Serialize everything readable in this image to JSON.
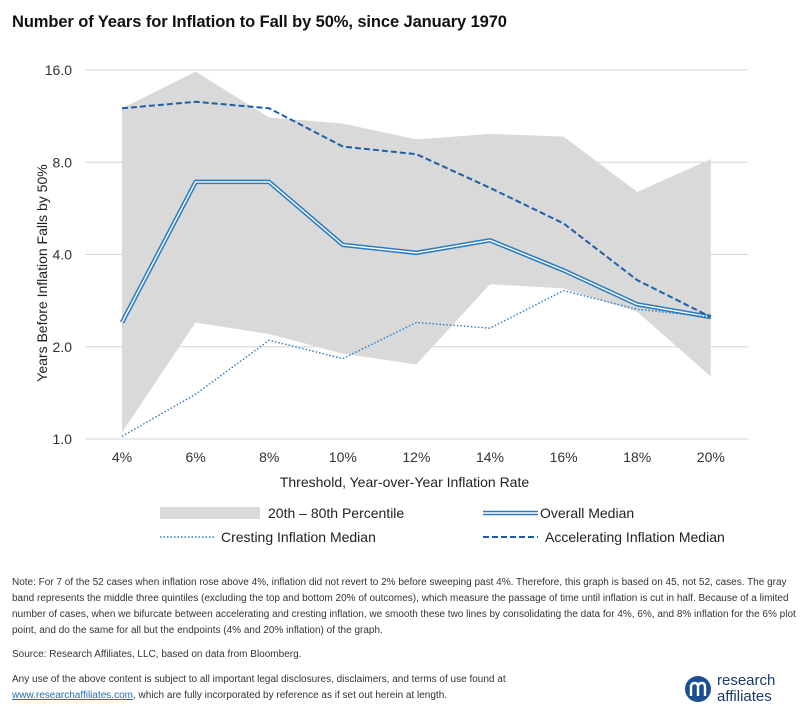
{
  "title": "Number of Years for Inflation to Fall by 50%, since January 1970",
  "chart_data": {
    "type": "line",
    "title": "Number of Years for Inflation to Fall by 50%, since January 1970",
    "xlabel": "Threshold,  Year-over-Year  Inflation  Rate",
    "ylabel": "Years Before Inflation Falls by 50%",
    "categories": [
      "4%",
      "6%",
      "8%",
      "10%",
      "12%",
      "14%",
      "16%",
      "18%",
      "20%"
    ],
    "y_scale": "log2",
    "ylim": [
      1.0,
      16.0
    ],
    "y_ticks": [
      "1.0",
      "2.0",
      "4.0",
      "8.0",
      "16.0"
    ],
    "y_tick_values": [
      1,
      2,
      4,
      8,
      16
    ],
    "grid": "horizontal",
    "band": {
      "name": "20th – 80th Percentile",
      "lower": [
        1.05,
        2.4,
        2.2,
        1.9,
        1.75,
        3.2,
        3.1,
        2.6,
        1.6
      ],
      "upper": [
        12.0,
        15.8,
        11.2,
        10.7,
        9.5,
        9.9,
        9.7,
        6.4,
        8.2
      ],
      "color": "#d9d9d9"
    },
    "series": [
      {
        "name": "Overall Median",
        "style": "double-solid",
        "color": "#2a7bc0",
        "values": [
          2.4,
          6.9,
          6.9,
          4.3,
          4.05,
          4.45,
          3.55,
          2.75,
          2.5
        ]
      },
      {
        "name": "Cresting Inflation Median",
        "style": "dotted",
        "color": "#2a7bc0",
        "values": [
          1.02,
          1.4,
          2.1,
          1.83,
          2.4,
          2.3,
          3.05,
          2.65,
          2.5
        ]
      },
      {
        "name": "Accelerating Inflation Median",
        "style": "dashed",
        "color": "#1f5fa6",
        "values": [
          12.0,
          12.6,
          12.0,
          9.0,
          8.5,
          6.6,
          5.05,
          3.3,
          2.5
        ]
      }
    ],
    "legend_position": "bottom"
  },
  "note": "Note: For 7 of the 52 cases when inflation rose above 4%, inflation did not revert to 2% before sweeping past 4%. Therefore, this graph is based on 45, not 52, cases. The gray band represents the middle three quintiles (excluding the top and bottom 20% of outcomes), which measure the passage of time until inflation is cut in half. Because of a limited number of cases, when we bifurcate between accelerating and cresting inflation, we smooth these two lines by consolidating the data for 4%, 6%, and 8% inflation for the 6% plot point, and do the same for all but the endpoints (4% and 20% inflation) of the graph.",
  "source": "Source: Research Affiliates, LLC, based on data from Bloomberg.",
  "disclaimer": {
    "text_before": "Any use of the above content is subject to all important legal disclosures, disclaimers, and terms of use found at",
    "link": "www.researchaffiliates.com",
    "text_after": ", which are fully incorporated by reference as if set out herein at length."
  },
  "logo": {
    "line1": "research",
    "line2": "affiliates"
  }
}
